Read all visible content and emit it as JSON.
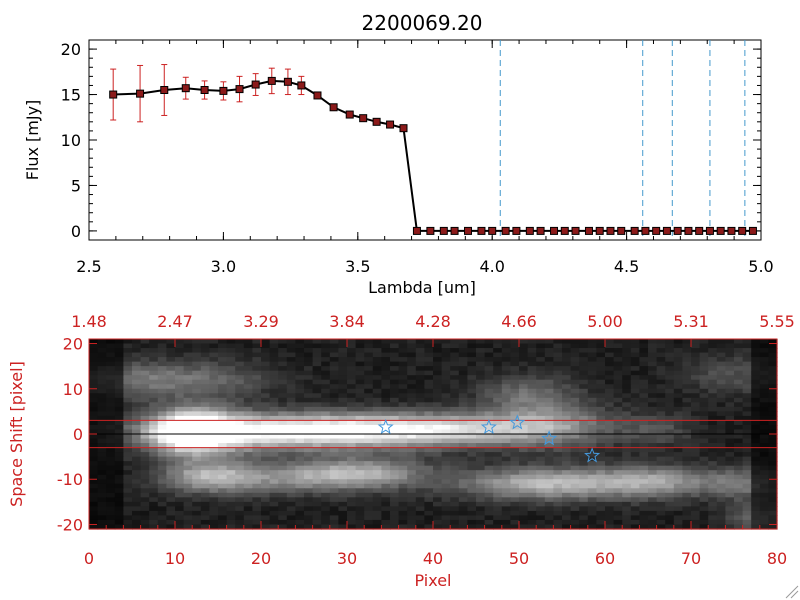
{
  "chart_data": [
    {
      "type": "line",
      "title": "2200069.20",
      "xlabel": "Lambda [um]",
      "ylabel": "Flux [mJy]",
      "xlim": [
        2.5,
        5.0
      ],
      "ylim": [
        -1,
        21
      ],
      "x_ticks": [
        2.5,
        3.0,
        3.5,
        4.0,
        4.5,
        5.0
      ],
      "x_tick_labels": [
        "2.5",
        "3.0",
        "3.5",
        "4.0",
        "4.5",
        "5.0"
      ],
      "y_ticks": [
        0,
        5,
        10,
        15,
        20
      ],
      "y_tick_labels": [
        "0",
        "5",
        "10",
        "15",
        "20"
      ],
      "series": [
        {
          "x": [
            2.59,
            2.69,
            2.78,
            2.86,
            2.93,
            3.0,
            3.06,
            3.12,
            3.18,
            3.24,
            3.29,
            3.35,
            3.41,
            3.47,
            3.52,
            3.57,
            3.62,
            3.67,
            3.72,
            3.77,
            3.82,
            3.86,
            3.91,
            3.96,
            4.0,
            4.05,
            4.09,
            4.14,
            4.18,
            4.23,
            4.27,
            4.31,
            4.36,
            4.4,
            4.44,
            4.48,
            4.53,
            4.57,
            4.61,
            4.65,
            4.69,
            4.73,
            4.77,
            4.81,
            4.85,
            4.89,
            4.93,
            4.97
          ],
          "y": [
            15.0,
            15.1,
            15.5,
            15.7,
            15.5,
            15.4,
            15.6,
            16.1,
            16.5,
            16.4,
            16.0,
            14.9,
            13.6,
            12.8,
            12.4,
            12.0,
            11.7,
            11.3,
            0,
            0,
            0,
            0,
            0,
            0,
            0,
            0,
            0,
            0,
            0,
            0,
            0,
            0,
            0,
            0,
            0,
            0,
            0,
            0,
            0,
            0,
            0,
            0,
            0,
            0,
            0,
            0,
            0,
            0
          ],
          "yerr": [
            2.8,
            3.1,
            2.8,
            1.2,
            1.0,
            1.0,
            1.4,
            1.2,
            1.4,
            1.4,
            1.0,
            0,
            0,
            0,
            0,
            0,
            0,
            0,
            0,
            0,
            0,
            0,
            0,
            0,
            0,
            0,
            0,
            0,
            0,
            0,
            0,
            0,
            0,
            0,
            0,
            0,
            0,
            0,
            0,
            0,
            0,
            0,
            0,
            0,
            0,
            0,
            0,
            0
          ]
        }
      ],
      "vertical_lines_x": [
        4.03,
        4.56,
        4.67,
        4.81,
        4.94
      ],
      "colors": {
        "line": "#000000",
        "marker": "#8b1a1a",
        "error_bar": "#cc2222",
        "vline": "#4499cc"
      }
    },
    {
      "type": "heatmap",
      "xlabel": "Pixel",
      "ylabel": "Space Shift [pixel]",
      "xlim": [
        0,
        80
      ],
      "ylim": [
        -21,
        21
      ],
      "x_ticks": [
        0,
        10,
        20,
        30,
        40,
        50,
        60,
        70,
        80
      ],
      "x_tick_labels": [
        "0",
        "10",
        "20",
        "30",
        "40",
        "50",
        "60",
        "70",
        "80"
      ],
      "y_ticks": [
        -20,
        -10,
        0,
        10,
        20
      ],
      "y_tick_labels": [
        "-20",
        "-10",
        "0",
        "10",
        "20"
      ],
      "top_axis_tick_labels": [
        "1.48",
        "2.47",
        "3.29",
        "3.84",
        "4.28",
        "4.66",
        "5.00",
        "5.31",
        "5.55"
      ],
      "horizontal_lines_y": [
        3,
        -3
      ],
      "center_line_y": 0,
      "stars": [
        {
          "x": 34.5,
          "y": 1.5
        },
        {
          "x": 46.5,
          "y": 1.5
        },
        {
          "x": 49.8,
          "y": 2.5
        },
        {
          "x": 53.5,
          "y": -1.0
        },
        {
          "x": 58.5,
          "y": -4.8
        }
      ],
      "blobs": [
        {
          "x": 12,
          "y": 0.5,
          "sx": 3.5,
          "sy": 3.5,
          "amp": 1.0
        },
        {
          "x": 20,
          "y": 0.5,
          "sx": 9,
          "sy": 2.8,
          "amp": 0.72
        },
        {
          "x": 33,
          "y": 0.8,
          "sx": 8,
          "sy": 2.6,
          "amp": 0.58
        },
        {
          "x": 44,
          "y": 1.0,
          "sx": 7,
          "sy": 2.5,
          "amp": 0.48
        },
        {
          "x": 54,
          "y": 2.0,
          "sx": 5,
          "sy": 3.5,
          "amp": 0.4
        },
        {
          "x": 14,
          "y": -9.5,
          "sx": 4,
          "sy": 2.5,
          "amp": 0.55
        },
        {
          "x": 25,
          "y": -9.5,
          "sx": 6,
          "sy": 2.5,
          "amp": 0.42
        },
        {
          "x": 33,
          "y": -8.5,
          "sx": 5,
          "sy": 2.5,
          "amp": 0.4
        },
        {
          "x": 53,
          "y": -11.0,
          "sx": 7,
          "sy": 2.5,
          "amp": 0.6
        },
        {
          "x": 66,
          "y": -10.5,
          "sx": 5,
          "sy": 2.5,
          "amp": 0.45
        },
        {
          "x": 76,
          "y": -11.0,
          "sx": 3,
          "sy": 2.5,
          "amp": 0.3
        },
        {
          "x": 6,
          "y": 12.0,
          "sx": 5,
          "sy": 3,
          "amp": 0.3
        },
        {
          "x": 15,
          "y": 12.0,
          "sx": 5,
          "sy": 3,
          "amp": 0.22
        },
        {
          "x": 51,
          "y": 9.0,
          "sx": 4,
          "sy": 3,
          "amp": 0.28
        },
        {
          "x": 75,
          "y": 13.0,
          "sx": 4,
          "sy": 3,
          "amp": 0.2
        },
        {
          "x": 78,
          "y": -19.0,
          "sx": 2.5,
          "sy": 2.5,
          "amp": 0.3
        },
        {
          "x": 66,
          "y": 1.0,
          "sx": 3,
          "sy": 2.5,
          "amp": 0.2
        }
      ],
      "colors": {
        "axes": "#cc2222",
        "hline": "#cc2222",
        "center_line": "#000000",
        "star": "#4499dd"
      }
    }
  ]
}
